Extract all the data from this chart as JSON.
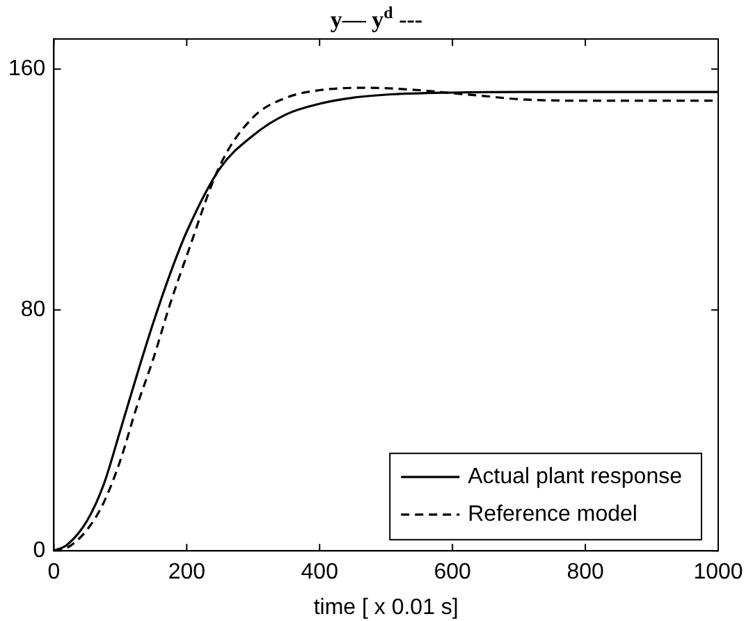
{
  "chart_data": {
    "type": "line",
    "title": "y— y$^{d}$ ---",
    "xlabel": "time [ x 0.01 s]",
    "xlim": [
      0,
      1000
    ],
    "xticks": [
      0,
      200,
      400,
      600,
      800,
      1000
    ],
    "ylim": [
      0,
      170
    ],
    "yticks": [
      0,
      80,
      160
    ],
    "grid": false,
    "legend": "bottom right",
    "marker": "none",
    "series": [
      {
        "name": "Actual plant response",
        "color": "#000000",
        "line_style": "solid",
        "x": [
          0,
          20,
          50,
          75,
          100,
          130,
          150,
          175,
          200,
          250,
          300,
          350,
          400,
          450,
          500,
          600,
          700,
          1000
        ],
        "values": [
          0,
          2,
          10,
          22,
          40,
          62,
          76,
          92,
          106,
          127,
          138,
          145,
          148.5,
          150.5,
          151.5,
          152.2,
          152.4,
          152.4
        ]
      },
      {
        "name": "Reference model",
        "color": "#000000",
        "line_style": "dashed",
        "x": [
          0,
          20,
          50,
          75,
          100,
          125,
          150,
          175,
          200,
          250,
          300,
          350,
          400,
          470,
          550,
          600,
          650,
          700,
          800,
          1000
        ],
        "values": [
          0,
          1,
          7,
          16,
          30,
          48,
          64,
          82,
          98,
          128,
          144,
          150.5,
          153,
          153.8,
          153,
          152,
          151,
          150,
          149.5,
          149.5
        ]
      }
    ]
  }
}
